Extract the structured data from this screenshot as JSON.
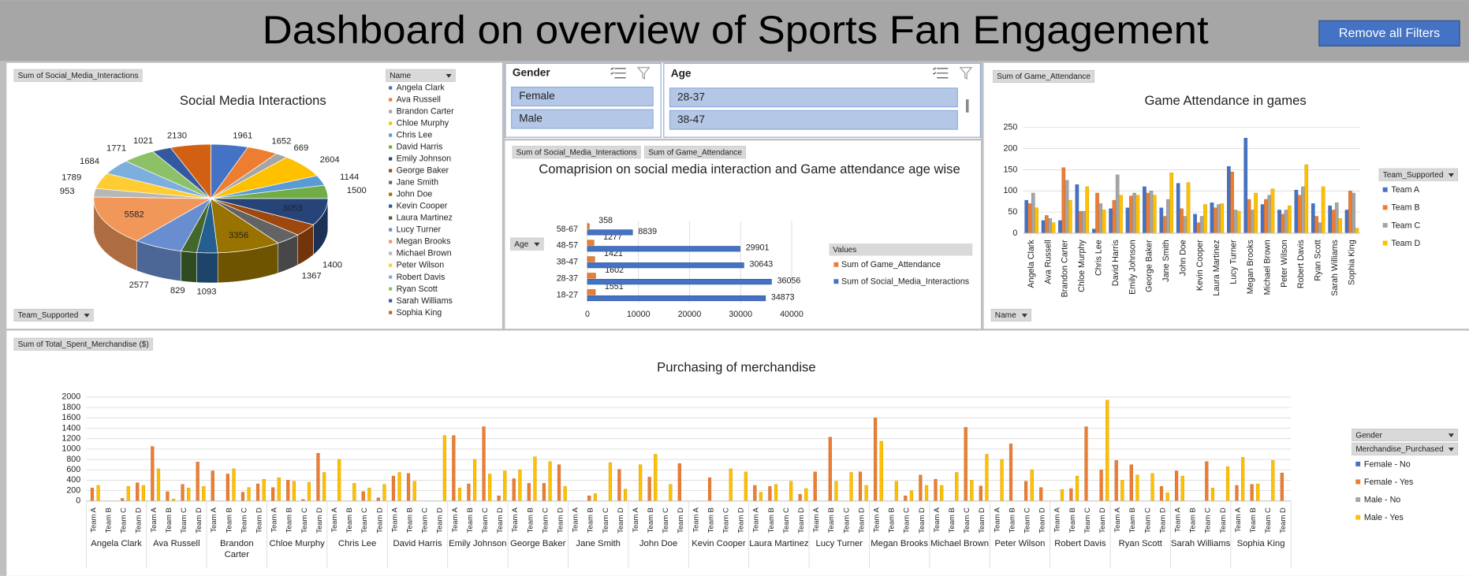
{
  "header": {
    "title": "Dashboard on overview of Sports Fan Engagement",
    "button": "Remove all Filters"
  },
  "slicers": [
    {
      "title": "Gender",
      "items": [
        "Female",
        "Male"
      ]
    },
    {
      "title": "Age",
      "items": [
        "28-37",
        "38-47"
      ]
    }
  ],
  "chart_data": [
    {
      "type": "pie",
      "title": "Social Media Interactions",
      "value_field": "Sum of Social_Media_Interactions",
      "legend_field": "Name",
      "axis_field": "Team_Supported",
      "categories": [
        "Angela Clark",
        "Ava Russell",
        "Brandon Carter",
        "Chloe Murphy",
        "Chris Lee",
        "David Harris",
        "Emily Johnson",
        "George Baker",
        "Jane Smith",
        "John Doe",
        "Kevin Cooper",
        "Laura Martinez",
        "Lucy Turner",
        "Megan Brooks",
        "Michael Brown",
        "Peter Wilson",
        "Robert Davis",
        "Ryan Scott",
        "Sarah Williams",
        "Sophia King"
      ],
      "values": [
        1961,
        1652,
        669,
        2604,
        1144,
        1500,
        3053,
        1400,
        1367,
        3356,
        1093,
        829,
        2577,
        5582,
        953,
        1789,
        1684,
        1771,
        1021,
        2130
      ],
      "colors": [
        "#4472c4",
        "#ed7d31",
        "#a5a5a5",
        "#ffc000",
        "#5b9bd5",
        "#70ad47",
        "#264478",
        "#9e480e",
        "#636363",
        "#997300",
        "#255e91",
        "#43682b",
        "#698ed0",
        "#f1975a",
        "#b7b7b7",
        "#ffcd33",
        "#7cafdd",
        "#8cc168",
        "#335aa1",
        "#d26012"
      ]
    },
    {
      "type": "bar",
      "orientation": "horizontal",
      "title": "Comaprision on social media interaction and Game attendance age wise",
      "value_fields": [
        "Sum of Social_Media_Interactions",
        "Sum of Game_Attendance"
      ],
      "axis_field": "Age",
      "legend_title": "Values",
      "categories": [
        "18-27",
        "28-37",
        "38-47",
        "48-57",
        "58-67"
      ],
      "series": [
        {
          "name": "Sum of Game_Attendance",
          "color": "#ed7d31",
          "values": [
            1551,
            1602,
            1421,
            1277,
            358
          ]
        },
        {
          "name": "Sum of Social_Media_Interactions",
          "color": "#4472c4",
          "values": [
            34873,
            36056,
            30643,
            29901,
            8839
          ]
        }
      ],
      "xlim": [
        0,
        40000
      ],
      "xticks": [
        0,
        10000,
        20000,
        30000,
        40000
      ],
      "grid": true
    },
    {
      "type": "bar",
      "orientation": "vertical",
      "title": "Game Attendance in games",
      "value_field": "Sum of Game_Attendance",
      "axis_field": "Name",
      "legend_field": "Team_Supported",
      "categories": [
        "Angela Clark",
        "Ava Russell",
        "Brandon Carter",
        "Chloe Murphy",
        "Chris Lee",
        "David Harris",
        "Emily Johnson",
        "George Baker",
        "Jane Smith",
        "John Doe",
        "Kevin Cooper",
        "Laura Martinez",
        "Lucy Turner",
        "Megan Brooks",
        "Michael Brown",
        "Peter Wilson",
        "Robert Davis",
        "Ryan Scott",
        "Sarah Williams",
        "Sophia King"
      ],
      "series": [
        {
          "name": "Team A",
          "color": "#4472c4",
          "values": [
            78,
            30,
            30,
            115,
            10,
            58,
            60,
            110,
            60,
            118,
            45,
            72,
            158,
            225,
            68,
            55,
            102,
            70,
            65,
            55
          ]
        },
        {
          "name": "Team B",
          "color": "#ed7d31",
          "values": [
            70,
            42,
            155,
            52,
            95,
            78,
            88,
            95,
            40,
            58,
            25,
            60,
            145,
            80,
            80,
            45,
            90,
            40,
            55,
            100
          ]
        },
        {
          "name": "Team C",
          "color": "#a5a5a5",
          "values": [
            95,
            35,
            125,
            52,
            70,
            138,
            95,
            100,
            80,
            40,
            40,
            68,
            55,
            55,
            90,
            55,
            110,
            25,
            72,
            95
          ]
        },
        {
          "name": "Team D",
          "color": "#ffc000",
          "values": [
            60,
            25,
            78,
            110,
            55,
            90,
            90,
            90,
            143,
            120,
            68,
            70,
            52,
            95,
            105,
            65,
            162,
            110,
            35,
            12
          ]
        }
      ],
      "ylim": [
        0,
        250
      ],
      "yticks": [
        0,
        50,
        100,
        150,
        200,
        250
      ],
      "grid": true
    },
    {
      "type": "bar",
      "orientation": "vertical",
      "title": "Purchasing of merchandise",
      "value_field": "Sum of Total_Spent_Merchandise ($)",
      "legend_fields": [
        "Gender",
        "Merchandise_Purchased"
      ],
      "groups": [
        "Angela Clark",
        "Ava Russell",
        "Brandon Carter",
        "Chloe Murphy",
        "Chris Lee",
        "David Harris",
        "Emily Johnson",
        "George Baker",
        "Jane Smith",
        "John Doe",
        "Kevin Cooper",
        "Laura Martinez",
        "Lucy Turner",
        "Megan Brooks",
        "Michael Brown",
        "Peter Wilson",
        "Robert Davis",
        "Ryan Scott",
        "Sarah Williams",
        "Sophia King"
      ],
      "categories": [
        "Team A",
        "Team B",
        "Team C",
        "Team D",
        "Team A",
        "Team B",
        "Team C",
        "Team D",
        "Team A",
        "Team B",
        "Team C",
        "Team D",
        "Team A",
        "Team B",
        "Team C",
        "Team D",
        "Team A",
        "Team B",
        "Team C",
        "Team D",
        "Team A",
        "Team B",
        "Team C",
        "Team D",
        "Team A",
        "Team B",
        "Team C",
        "Team D",
        "Team A",
        "Team B",
        "Team C",
        "Team D",
        "Team A",
        "Team B",
        "Team C",
        "Team D",
        "Team A",
        "Team B",
        "Team C",
        "Team D",
        "Team A",
        "Team B",
        "Team C",
        "Team D",
        "Team A",
        "Team B",
        "Team C",
        "Team D",
        "Team A",
        "Team B",
        "Team C",
        "Team D",
        "Team A",
        "Team B",
        "Team C",
        "Team D",
        "Team A",
        "Team B",
        "Team C",
        "Team D",
        "Team A",
        "Team B",
        "Team C",
        "Team D",
        "Team A",
        "Team B",
        "Team C",
        "Team D",
        "Team A",
        "Team B",
        "Team C",
        "Team D",
        "Team A",
        "Team B",
        "Team C",
        "Team D",
        "Team A",
        "Team B",
        "Team C",
        "Team D"
      ],
      "series": [
        {
          "name": "Female - No",
          "color": "#4472c4",
          "values": [
            0,
            0,
            0,
            0,
            0,
            0,
            0,
            0,
            0,
            0,
            0,
            0,
            0,
            0,
            0,
            0,
            0,
            0,
            0,
            0,
            0,
            0,
            0,
            0,
            0,
            0,
            0,
            0,
            0,
            0,
            0,
            0,
            0,
            0,
            0,
            0,
            0,
            0,
            0,
            0,
            0,
            0,
            0,
            0,
            0,
            0,
            0,
            0,
            0,
            0,
            0,
            0,
            0,
            0,
            0,
            0,
            0,
            0,
            0,
            0,
            0,
            0,
            0,
            0,
            0,
            0,
            0,
            0,
            0,
            0,
            0,
            0,
            0,
            0,
            0,
            0,
            0,
            0,
            0,
            0
          ]
        },
        {
          "name": "Female - Yes",
          "color": "#ed7d31",
          "values": [
            250,
            0,
            50,
            350,
            1050,
            180,
            320,
            750,
            580,
            520,
            170,
            330,
            260,
            400,
            30,
            920,
            0,
            0,
            180,
            60,
            480,
            530,
            0,
            0,
            1260,
            330,
            1430,
            100,
            430,
            340,
            340,
            700,
            0,
            100,
            0,
            610,
            0,
            460,
            0,
            720,
            0,
            450,
            0,
            0,
            300,
            280,
            0,
            130,
            560,
            1230,
            0,
            560,
            1600,
            0,
            100,
            500,
            420,
            0,
            1420,
            290,
            0,
            1100,
            380,
            260,
            0,
            240,
            1430,
            600,
            780,
            700,
            0,
            280,
            580,
            0,
            760,
            0,
            300,
            320,
            0,
            540
          ]
        },
        {
          "name": "Male - No",
          "color": "#a5a5a5",
          "values": [
            0,
            0,
            0,
            0,
            0,
            0,
            0,
            0,
            0,
            0,
            0,
            0,
            0,
            0,
            0,
            0,
            0,
            0,
            0,
            0,
            0,
            0,
            0,
            0,
            0,
            0,
            0,
            0,
            0,
            0,
            0,
            0,
            0,
            0,
            0,
            0,
            0,
            0,
            0,
            0,
            0,
            0,
            0,
            0,
            0,
            0,
            0,
            0,
            0,
            0,
            0,
            0,
            0,
            0,
            0,
            0,
            0,
            0,
            0,
            0,
            0,
            0,
            0,
            0,
            0,
            0,
            0,
            0,
            0,
            0,
            0,
            0,
            0,
            0,
            0,
            0,
            0,
            0,
            0,
            0
          ]
        },
        {
          "name": "Male - Yes",
          "color": "#ffc000",
          "values": [
            300,
            0,
            280,
            300,
            620,
            40,
            250,
            280,
            0,
            620,
            260,
            420,
            450,
            380,
            360,
            550,
            800,
            340,
            250,
            320,
            550,
            380,
            0,
            1260,
            250,
            800,
            520,
            580,
            600,
            850,
            760,
            280,
            0,
            140,
            740,
            230,
            700,
            900,
            320,
            0,
            0,
            0,
            620,
            560,
            170,
            320,
            380,
            240,
            0,
            380,
            550,
            300,
            1150,
            380,
            200,
            300,
            300,
            550,
            400,
            900,
            800,
            0,
            600,
            0,
            220,
            480,
            0,
            1940,
            400,
            500,
            530,
            160,
            480,
            0,
            250,
            660,
            840,
            330,
            780,
            0
          ]
        }
      ],
      "ylim": [
        0,
        2000
      ],
      "yticks": [
        0,
        200,
        400,
        600,
        800,
        1000,
        1200,
        1400,
        1600,
        1800,
        2000
      ],
      "grid": true
    }
  ]
}
